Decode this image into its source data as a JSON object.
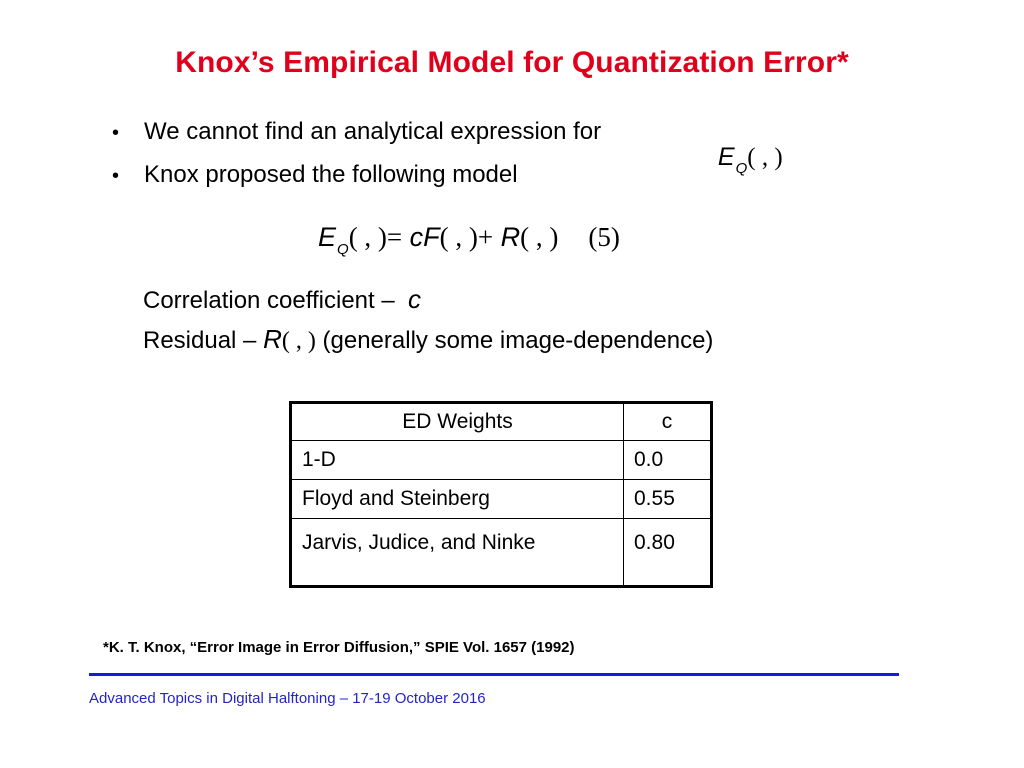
{
  "title": "Knox’s Empirical Model for Quantization Error*",
  "bullets": [
    {
      "dot": "•",
      "text": "We cannot find an analytical expression for"
    },
    {
      "dot": "•",
      "text": "Knox proposed the following model"
    }
  ],
  "inline_expr": {
    "E": "E",
    "sub": "Q",
    "args": "( , )"
  },
  "equation": {
    "lhs_E": "E",
    "lhs_sub": "Q",
    "lhs_args": "( , )",
    "equals": "=",
    "c": "c",
    "F": "F",
    "F_args": "( , )",
    "plus": "+",
    "R": "R",
    "R_args": "( , )",
    "number": "(5)"
  },
  "definitions": {
    "correlation_label": "Correlation coefficient –",
    "correlation_symbol": "c",
    "residual_label": "Residual –",
    "residual_symbol": "R",
    "residual_args": "( , )",
    "residual_note": "(generally some image-dependence)"
  },
  "table": {
    "headers": [
      "ED Weights",
      "c"
    ],
    "rows": [
      [
        "1-D",
        "0.0"
      ],
      [
        "Floyd and Steinberg",
        "0.55"
      ],
      [
        "Jarvis, Judice, and Ninke",
        "0.80"
      ]
    ]
  },
  "footnote": "*K. T. Knox, “Error Image in Error Diffusion,” SPIE Vol. 1657 (1992)",
  "footer": "Advanced Topics in Digital Halftoning – 17-19 October 2016",
  "colors": {
    "title": "#e0001b",
    "footer": "#2424c8",
    "rule": "#1a1ad6"
  }
}
